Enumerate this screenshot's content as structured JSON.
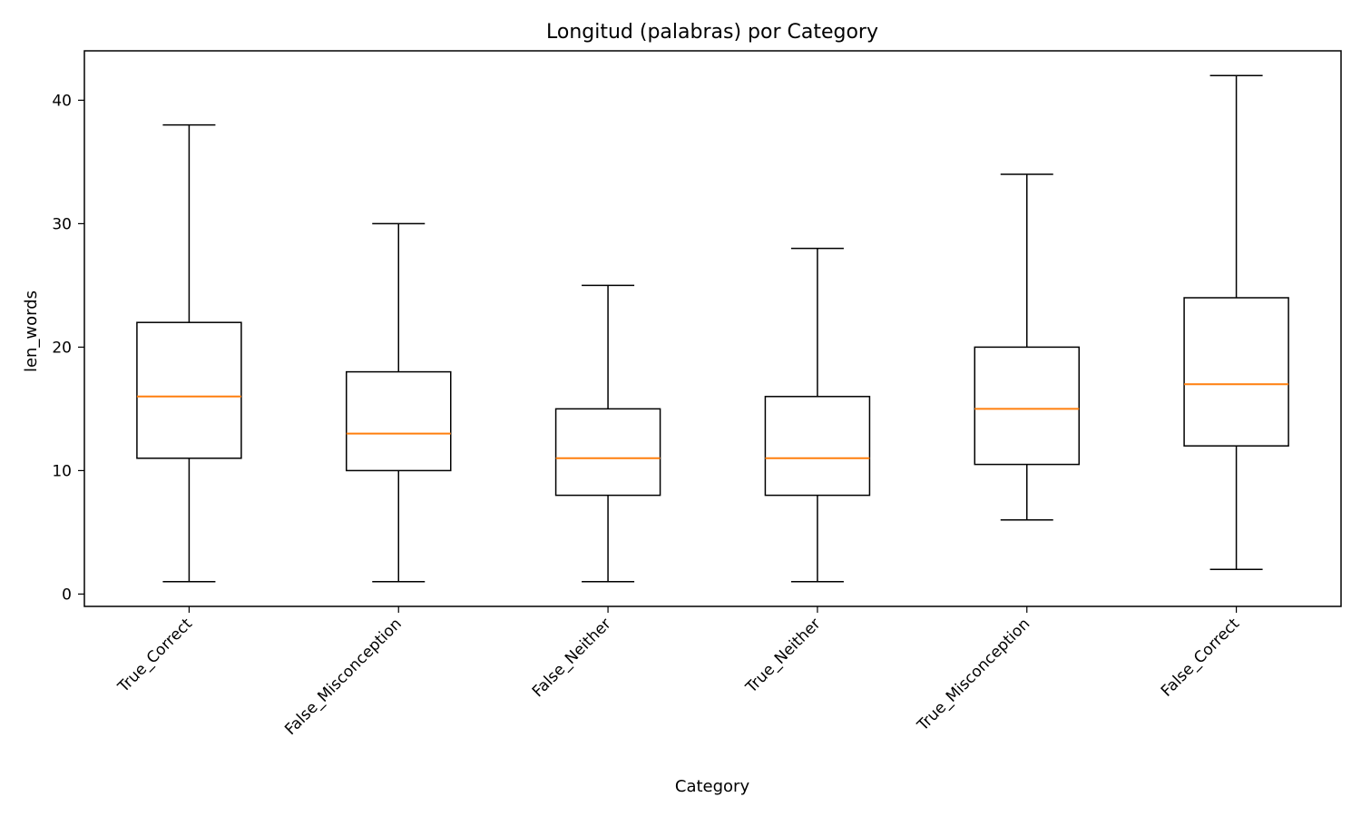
{
  "chart_data": {
    "type": "box",
    "title": "Longitud (palabras) por Category",
    "xlabel": "Category",
    "ylabel": "len_words",
    "ylim": [
      -1,
      44
    ],
    "yticks": [
      0,
      10,
      20,
      30,
      40
    ],
    "categories": [
      "True_Correct",
      "False_Misconception",
      "False_Neither",
      "True_Neither",
      "True_Misconception",
      "False_Correct"
    ],
    "boxes": [
      {
        "category": "True_Correct",
        "whisker_low": 1,
        "q1": 11,
        "median": 16,
        "q3": 22,
        "whisker_high": 38
      },
      {
        "category": "False_Misconception",
        "whisker_low": 1,
        "q1": 10,
        "median": 13,
        "q3": 18,
        "whisker_high": 30
      },
      {
        "category": "False_Neither",
        "whisker_low": 1,
        "q1": 8,
        "median": 11,
        "q3": 15,
        "whisker_high": 25
      },
      {
        "category": "True_Neither",
        "whisker_low": 1,
        "q1": 8,
        "median": 11,
        "q3": 16,
        "whisker_high": 28
      },
      {
        "category": "True_Misconception",
        "whisker_low": 6,
        "q1": 10.5,
        "median": 15,
        "q3": 20,
        "whisker_high": 34
      },
      {
        "category": "False_Correct",
        "whisker_low": 2,
        "q1": 12,
        "median": 17,
        "q3": 24,
        "whisker_high": 42
      }
    ],
    "grid": false,
    "colors": {
      "box": "#000000",
      "median": "#ff7f0e"
    }
  }
}
